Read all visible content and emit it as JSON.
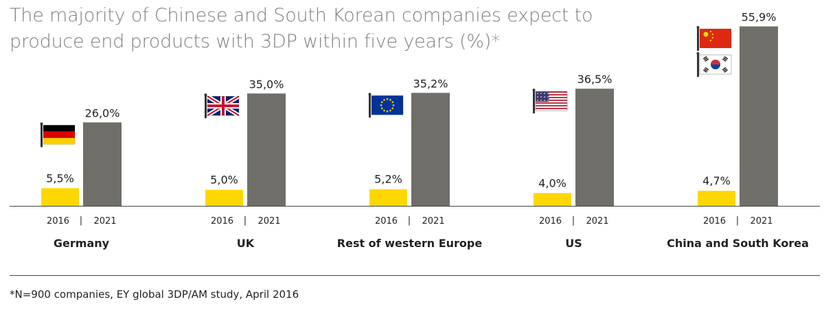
{
  "title": {
    "line1": "The majority of Chinese and South Korean companies expect to",
    "line2": "produce end products with 3DP within five years (%)*"
  },
  "footnote": "*N=900 companies, EY global 3DP/AM study, April 2016",
  "colors": {
    "bar_2016": "#ffd700",
    "bar_2021": "#6f6e69",
    "title": "#7f7f7f"
  },
  "chart_data": {
    "type": "bar",
    "categories": [
      "Germany",
      "UK",
      "Rest of western Europe",
      "US",
      "China and South Korea"
    ],
    "series": [
      {
        "name": "2016",
        "values": [
          5.5,
          5.0,
          5.2,
          4.0,
          4.7
        ],
        "labels": [
          "5,5%",
          "5,0%",
          "5,2%",
          "4,0%",
          "4,7%"
        ]
      },
      {
        "name": "2021",
        "values": [
          26.0,
          35.0,
          35.2,
          36.5,
          55.9
        ],
        "labels": [
          "26,0%",
          "35,0%",
          "35,2%",
          "36,5%",
          "55,9%"
        ]
      }
    ],
    "year_labels": [
      "2016",
      "2021"
    ],
    "separator": "|",
    "flags": [
      [
        "germany-flag-icon"
      ],
      [
        "uk-flag-icon"
      ],
      [
        "eu-flag-icon"
      ],
      [
        "us-flag-icon"
      ],
      [
        "china-flag-icon",
        "south-korea-flag-icon"
      ]
    ],
    "ylim": [
      0,
      56
    ],
    "grid": false
  }
}
